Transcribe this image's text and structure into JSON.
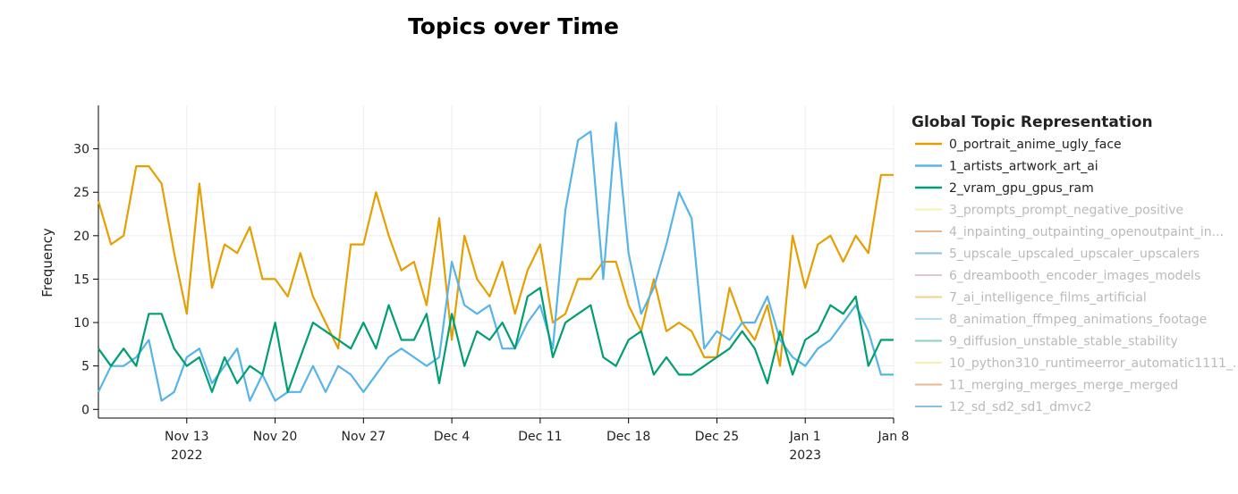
{
  "chart_data": {
    "type": "line",
    "title": "Topics over Time",
    "xlabel": "",
    "ylabel": "Frequency",
    "x_start": "2022-11-06",
    "x_end": "2023-01-08",
    "xlim": [
      "2022-11-06",
      "2023-01-08"
    ],
    "ylim": [
      -1,
      35
    ],
    "yticks": [
      0,
      5,
      10,
      15,
      20,
      25,
      30
    ],
    "xticks": [
      {
        "date": "2022-11-13",
        "label": "Nov 13",
        "sublabel": "2022"
      },
      {
        "date": "2022-11-20",
        "label": "Nov 20",
        "sublabel": ""
      },
      {
        "date": "2022-11-27",
        "label": "Nov 27",
        "sublabel": ""
      },
      {
        "date": "2022-12-04",
        "label": "Dec 4",
        "sublabel": ""
      },
      {
        "date": "2022-12-11",
        "label": "Dec 11",
        "sublabel": ""
      },
      {
        "date": "2022-12-18",
        "label": "Dec 18",
        "sublabel": ""
      },
      {
        "date": "2022-12-25",
        "label": "Dec 25",
        "sublabel": ""
      },
      {
        "date": "2023-01-01",
        "label": "Jan 1",
        "sublabel": "2023"
      },
      {
        "date": "2023-01-08",
        "label": "Jan 8",
        "sublabel": ""
      }
    ],
    "grid": true,
    "legend_title": "Global Topic Representation",
    "legend_position": "right",
    "series": [
      {
        "name": "0_portrait_anime_ugly_face",
        "color": "#E69F00",
        "visible": true,
        "x": [
          "2022-11-06",
          "2022-11-07",
          "2022-11-08",
          "2022-11-09",
          "2022-11-10",
          "2022-11-11",
          "2022-11-12",
          "2022-11-13",
          "2022-11-14",
          "2022-11-15",
          "2022-11-16",
          "2022-11-17",
          "2022-11-18",
          "2022-11-19",
          "2022-11-20",
          "2022-11-21",
          "2022-11-22",
          "2022-11-23",
          "2022-11-24",
          "2022-11-25",
          "2022-11-26",
          "2022-11-27",
          "2022-11-28",
          "2022-11-29",
          "2022-11-30",
          "2022-12-01",
          "2022-12-02",
          "2022-12-03",
          "2022-12-04",
          "2022-12-05",
          "2022-12-06",
          "2022-12-07",
          "2022-12-08",
          "2022-12-09",
          "2022-12-10",
          "2022-12-11",
          "2022-12-12",
          "2022-12-13",
          "2022-12-14",
          "2022-12-15",
          "2022-12-16",
          "2022-12-17",
          "2022-12-18",
          "2022-12-19",
          "2022-12-20",
          "2022-12-21",
          "2022-12-22",
          "2022-12-23",
          "2022-12-24",
          "2022-12-25",
          "2022-12-26",
          "2022-12-27",
          "2022-12-28",
          "2022-12-29",
          "2022-12-30",
          "2022-12-31",
          "2023-01-01",
          "2023-01-02",
          "2023-01-03",
          "2023-01-04",
          "2023-01-05",
          "2023-01-06",
          "2023-01-07",
          "2023-01-08"
        ],
        "y": [
          24,
          19,
          20,
          28,
          28,
          26,
          18,
          11,
          26,
          14,
          19,
          18,
          21,
          15,
          15,
          13,
          18,
          13,
          10,
          7,
          19,
          19,
          25,
          20,
          16,
          17,
          12,
          22,
          8,
          20,
          15,
          13,
          17,
          11,
          16,
          19,
          10,
          11,
          15,
          15,
          17,
          17,
          12,
          9,
          15,
          9,
          10,
          9,
          6,
          6,
          14,
          10,
          8,
          12,
          5,
          20,
          14,
          19,
          20,
          17,
          20,
          18,
          27,
          27
        ]
      },
      {
        "name": "1_artists_artwork_art_ai",
        "color": "#56B4E9",
        "visible": true,
        "x": [
          "2022-11-06",
          "2022-11-07",
          "2022-11-08",
          "2022-11-09",
          "2022-11-10",
          "2022-11-11",
          "2022-11-12",
          "2022-11-13",
          "2022-11-14",
          "2022-11-15",
          "2022-11-16",
          "2022-11-17",
          "2022-11-18",
          "2022-11-19",
          "2022-11-20",
          "2022-11-21",
          "2022-11-22",
          "2022-11-23",
          "2022-11-24",
          "2022-11-25",
          "2022-11-26",
          "2022-11-27",
          "2022-11-28",
          "2022-11-29",
          "2022-11-30",
          "2022-12-01",
          "2022-12-02",
          "2022-12-03",
          "2022-12-04",
          "2022-12-05",
          "2022-12-06",
          "2022-12-07",
          "2022-12-08",
          "2022-12-09",
          "2022-12-10",
          "2022-12-11",
          "2022-12-12",
          "2022-12-13",
          "2022-12-14",
          "2022-12-15",
          "2022-12-16",
          "2022-12-17",
          "2022-12-18",
          "2022-12-19",
          "2022-12-20",
          "2022-12-21",
          "2022-12-22",
          "2022-12-23",
          "2022-12-24",
          "2022-12-25",
          "2022-12-26",
          "2022-12-27",
          "2022-12-28",
          "2022-12-29",
          "2022-12-30",
          "2022-12-31",
          "2023-01-01",
          "2023-01-02",
          "2023-01-03",
          "2023-01-04",
          "2023-01-05",
          "2023-01-06",
          "2023-01-07",
          "2023-01-08"
        ],
        "y": [
          2,
          5,
          5,
          6,
          8,
          1,
          2,
          6,
          7,
          3,
          5,
          7,
          1,
          4,
          1,
          2,
          2,
          5,
          2,
          5,
          4,
          2,
          4,
          6,
          7,
          6,
          5,
          6,
          17,
          12,
          11,
          12,
          7,
          7,
          10,
          12,
          7,
          23,
          31,
          32,
          15,
          33,
          18,
          11,
          14,
          19,
          25,
          22,
          7,
          9,
          8,
          10,
          10,
          13,
          8,
          6,
          5,
          7,
          8,
          10,
          12,
          9,
          4,
          4
        ]
      },
      {
        "name": "2_vram_gpu_gpus_ram",
        "color": "#009E73",
        "visible": true,
        "x": [
          "2022-11-06",
          "2022-11-07",
          "2022-11-08",
          "2022-11-09",
          "2022-11-10",
          "2022-11-11",
          "2022-11-12",
          "2022-11-13",
          "2022-11-14",
          "2022-11-15",
          "2022-11-16",
          "2022-11-17",
          "2022-11-18",
          "2022-11-19",
          "2022-11-20",
          "2022-11-21",
          "2022-11-22",
          "2022-11-23",
          "2022-11-24",
          "2022-11-25",
          "2022-11-26",
          "2022-11-27",
          "2022-11-28",
          "2022-11-29",
          "2022-11-30",
          "2022-12-01",
          "2022-12-02",
          "2022-12-03",
          "2022-12-04",
          "2022-12-05",
          "2022-12-06",
          "2022-12-07",
          "2022-12-08",
          "2022-12-09",
          "2022-12-10",
          "2022-12-11",
          "2022-12-12",
          "2022-12-13",
          "2022-12-14",
          "2022-12-15",
          "2022-12-16",
          "2022-12-17",
          "2022-12-18",
          "2022-12-19",
          "2022-12-20",
          "2022-12-21",
          "2022-12-22",
          "2022-12-23",
          "2022-12-24",
          "2022-12-25",
          "2022-12-26",
          "2022-12-27",
          "2022-12-28",
          "2022-12-29",
          "2022-12-30",
          "2022-12-31",
          "2023-01-01",
          "2023-01-02",
          "2023-01-03",
          "2023-01-04",
          "2023-01-05",
          "2023-01-06",
          "2023-01-07",
          "2023-01-08"
        ],
        "y": [
          7,
          5,
          7,
          5,
          11,
          11,
          7,
          5,
          6,
          2,
          6,
          3,
          5,
          4,
          10,
          2,
          6,
          10,
          9,
          8,
          7,
          10,
          7,
          12,
          8,
          8,
          11,
          3,
          11,
          5,
          9,
          8,
          10,
          7,
          13,
          14,
          6,
          10,
          11,
          12,
          6,
          5,
          8,
          9,
          4,
          6,
          4,
          4,
          5,
          6,
          7,
          9,
          7,
          3,
          9,
          4,
          8,
          9,
          12,
          11,
          13,
          5,
          8,
          8
        ]
      },
      {
        "name": "3_prompts_prompt_negative_positive",
        "color": "#F0E442",
        "visible": false
      },
      {
        "name": "4_inpainting_outpainting_openoutpaint_in...",
        "color": "#D55E00",
        "visible": false
      },
      {
        "name": "5_upscale_upscaled_upscaler_upscalers",
        "color": "#0072B2",
        "visible": false
      },
      {
        "name": "6_dreambooth_encoder_images_models",
        "color": "#CC79A7",
        "visible": false
      },
      {
        "name": "7_ai_intelligence_films_artificial",
        "color": "#E69F00",
        "visible": false
      },
      {
        "name": "8_animation_ffmpeg_animations_footage",
        "color": "#56B4E9",
        "visible": false
      },
      {
        "name": "9_diffusion_unstable_stable_stability",
        "color": "#009E73",
        "visible": false
      },
      {
        "name": "10_python310_runtimeerror_automatic1111_...",
        "color": "#F0E442",
        "visible": false
      },
      {
        "name": "11_merging_merges_merge_merged",
        "color": "#D55E00",
        "visible": false
      },
      {
        "name": "12_sd_sd2_sd1_dmvc2",
        "color": "#0072B2",
        "visible": false
      }
    ]
  }
}
